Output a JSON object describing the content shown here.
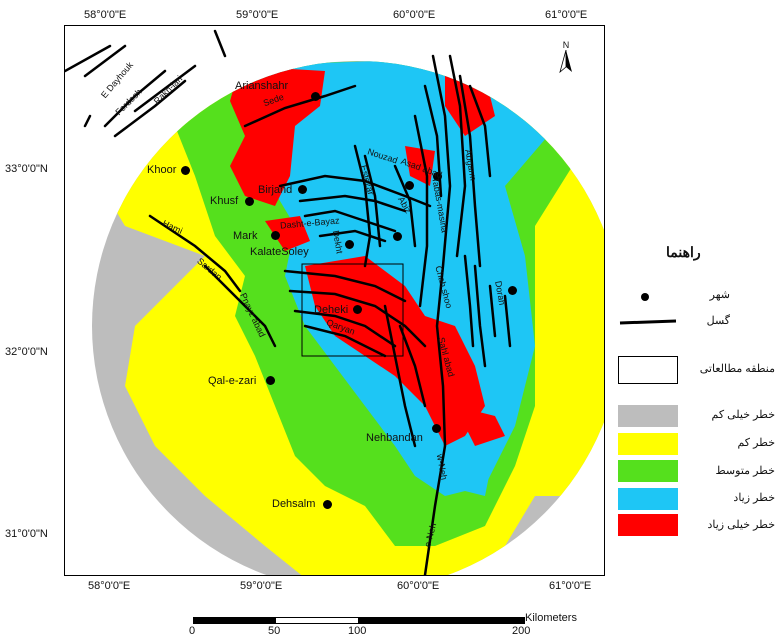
{
  "map": {
    "top_lon_labels": [
      "58°0'0\"E",
      "59°0'0\"E",
      "60°0'0\"E",
      "61°0'0\"E"
    ],
    "bottom_lon_labels": [
      "58°0'0\"E",
      "59°0'0\"E",
      "60°0'0\"E",
      "61°0'0\"E"
    ],
    "lat_labels": [
      "33°0'0\"N",
      "32°0'0\"N",
      "31°0'0\"N"
    ],
    "north_arrow": "N",
    "cities": [
      {
        "name": "Arianshahr"
      },
      {
        "name": "Khoor"
      },
      {
        "name": "Birjand"
      },
      {
        "name": "Khusf"
      },
      {
        "name": "Mark"
      },
      {
        "name": "KalateSoley"
      },
      {
        "name": "Deheki"
      },
      {
        "name": "Qal-e-zari"
      },
      {
        "name": "Nehbandan"
      },
      {
        "name": "Dehsalm"
      }
    ],
    "faults": [
      "Sede",
      "Nouzad",
      "Asad abad",
      "Abiz",
      "Abgarm",
      "Esfezar",
      "Tabas-masina",
      "Hami",
      "Sardan",
      "Pnayz abad",
      "Qaryan",
      "Chah shoo",
      "Dekht",
      "Sahl abad",
      "w-Neh",
      "e-Neh",
      "Dorah",
      "Dasht-e-Bayaz",
      "E Dayhouk",
      "Ferdosh",
      "Rakh-lari"
    ]
  },
  "legend": {
    "title": "راهنما",
    "city": "شهر",
    "fault": "گسل",
    "study_area": "منطقه مطالعاتی",
    "classes": [
      {
        "label": "خطر خیلی کم",
        "color": "#bdbdbd"
      },
      {
        "label": "خطر کم",
        "color": "#ffff00"
      },
      {
        "label": "خطر متوسط",
        "color": "#55e01d"
      },
      {
        "label": "خطر زیاد",
        "color": "#1ec6f5"
      },
      {
        "label": "خطر خیلی زیاد",
        "color": "#ff0000"
      }
    ]
  },
  "scale": {
    "unit": "Kilometers",
    "ticks": [
      "0",
      "50",
      "100",
      "200"
    ]
  }
}
